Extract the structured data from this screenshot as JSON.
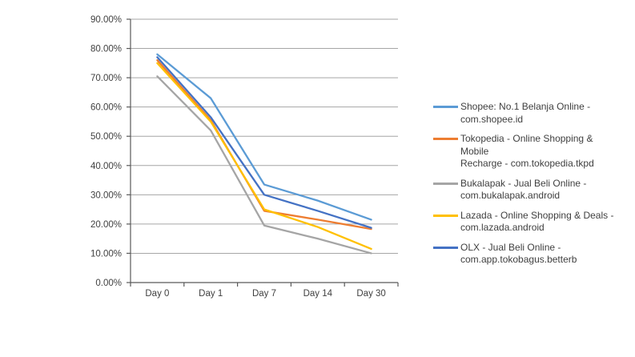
{
  "chart_data": {
    "type": "line",
    "title": "",
    "xlabel": "",
    "ylabel": "",
    "x_categories": [
      "Day 0",
      "Day 1",
      "Day 7",
      "Day 14",
      "Day 30"
    ],
    "series": [
      {
        "key": "shopee",
        "name": "Shopee: No.1 Belanja Online - com.shopee.id",
        "legend_lines": [
          "Shopee: No.1 Belanja Online -",
          "com.shopee.id"
        ],
        "color": "#5B9BD5",
        "values": [
          78,
          63,
          33.5,
          28,
          21.5
        ]
      },
      {
        "key": "tokopedia",
        "name": "Tokopedia - Online Shopping & Mobile Recharge - com.tokopedia.tkpd",
        "legend_lines": [
          "Tokopedia - Online Shopping & Mobile",
          "Recharge - com.tokopedia.tkpd"
        ],
        "color": "#ED7D31",
        "values": [
          76,
          55.5,
          24.5,
          21.5,
          18.3
        ]
      },
      {
        "key": "bukalapak",
        "name": "Bukalapak - Jual Beli Online - com.bukalapak.android",
        "legend_lines": [
          "Bukalapak - Jual Beli Online -",
          "com.bukalapak.android"
        ],
        "color": "#A5A5A5",
        "values": [
          70.5,
          52,
          19.5,
          15,
          10
        ]
      },
      {
        "key": "lazada",
        "name": "Lazada - Online Shopping & Deals - com.lazada.android",
        "legend_lines": [
          "Lazada - Online Shopping & Deals -",
          "com.lazada.android"
        ],
        "color": "#FFC000",
        "values": [
          75,
          55,
          25,
          19,
          11.5
        ]
      },
      {
        "key": "olx",
        "name": "OLX - Jual Beli Online - com.app.tokobagus.betterb",
        "legend_lines": [
          "OLX - Jual Beli Online -",
          "com.app.tokobagus.betterb"
        ],
        "color": "#4472C4",
        "values": [
          77,
          56.5,
          30,
          24.5,
          18.7
        ]
      }
    ],
    "ylim": [
      0,
      90
    ],
    "ytick_step": 10,
    "ytick_labels": [
      "0.00%",
      "10.00%",
      "20.00%",
      "30.00%",
      "40.00%",
      "50.00%",
      "60.00%",
      "70.00%",
      "80.00%",
      "90.00%"
    ],
    "value_unit": "percent",
    "grid": true,
    "legend_position": "right"
  },
  "colors": {
    "background": "#FFFFFF",
    "gridline": "#A6A6A6",
    "axis": "#595959",
    "axis_label_text": "#404040",
    "legend_text": "#404040"
  }
}
